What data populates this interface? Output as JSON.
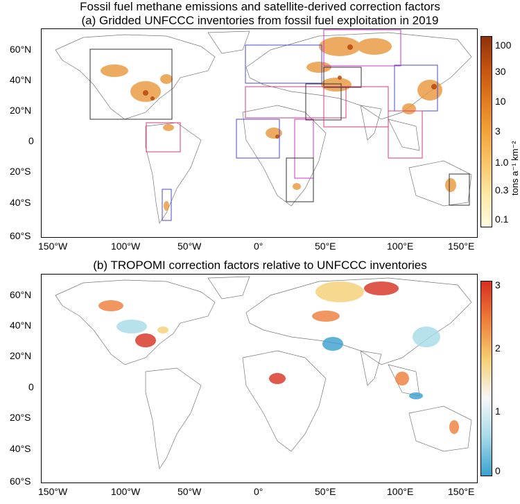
{
  "figure": {
    "main_title": "Fossil fuel methane emissions and satellite-derived correction factors",
    "panel_a_title": "(a) Gridded UNFCCC inventories from fossil fuel exploitation in 2019",
    "panel_b_title": "(b) TROPOMI correction factors relative to UNFCCC inventories"
  },
  "axes": {
    "lat_ticks": [
      "60°N",
      "40°N",
      "20°N",
      "0",
      "20°S",
      "40°S",
      "60°S"
    ],
    "lon_ticks": [
      "150°W",
      "100°W",
      "50°W",
      "0°",
      "50°E",
      "100°E",
      "150°E"
    ]
  },
  "colorbar_a": {
    "units": "tons a⁻¹ km⁻²",
    "ticks": [
      "100",
      "30",
      "10",
      "3",
      "1.0",
      "0.3",
      "0.1"
    ],
    "colors": [
      "#fffbe0",
      "#fde9a6",
      "#f9c66a",
      "#f2a33a",
      "#e07a1e",
      "#c4530f",
      "#8e3208"
    ]
  },
  "colorbar_b": {
    "ticks": [
      "3",
      "2",
      "1",
      "0"
    ],
    "colors": [
      "#d7301f",
      "#f07d3a",
      "#f5cf72",
      "#f7f7f7",
      "#a6dbe8",
      "#3aa0cf"
    ]
  },
  "boxes": {
    "black": "#333333",
    "blue": "#4a4ad8",
    "pink": "#d83a7a",
    "magenta": "#cc33cc"
  }
}
